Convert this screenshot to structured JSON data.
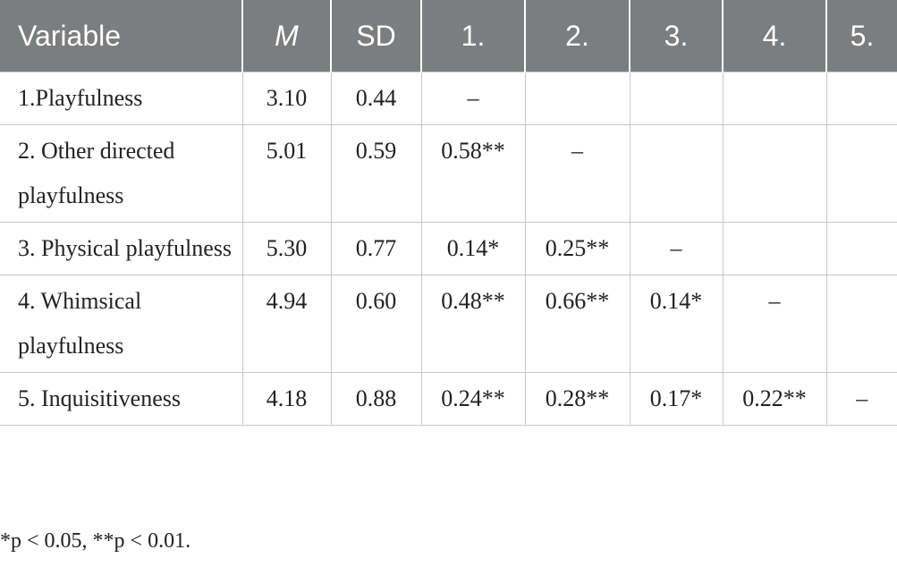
{
  "table": {
    "header": [
      "Variable",
      "M",
      "SD",
      "1.",
      "2.",
      "3.",
      "4.",
      "5."
    ],
    "rows": [
      [
        "1.Playfulness",
        "3.10",
        "0.44",
        "–",
        null,
        null,
        null,
        null
      ],
      [
        "2. Other directed playfulness",
        "5.01",
        "0.59",
        "0.58**",
        "–",
        null,
        null,
        null
      ],
      [
        "3. Physical playfulness",
        "5.30",
        "0.77",
        "0.14*",
        "0.25**",
        "–",
        null,
        null
      ],
      [
        "4. Whimsical playfulness",
        "4.94",
        "0.60",
        "0.48**",
        "0.66**",
        "0.14*",
        "–",
        null
      ],
      [
        "5. Inquisitiveness",
        "4.18",
        "0.88",
        "0.24**",
        "0.28**",
        "0.17*",
        "0.22**",
        "–"
      ]
    ]
  },
  "footnote": "*p < 0.05, **p < 0.01."
}
